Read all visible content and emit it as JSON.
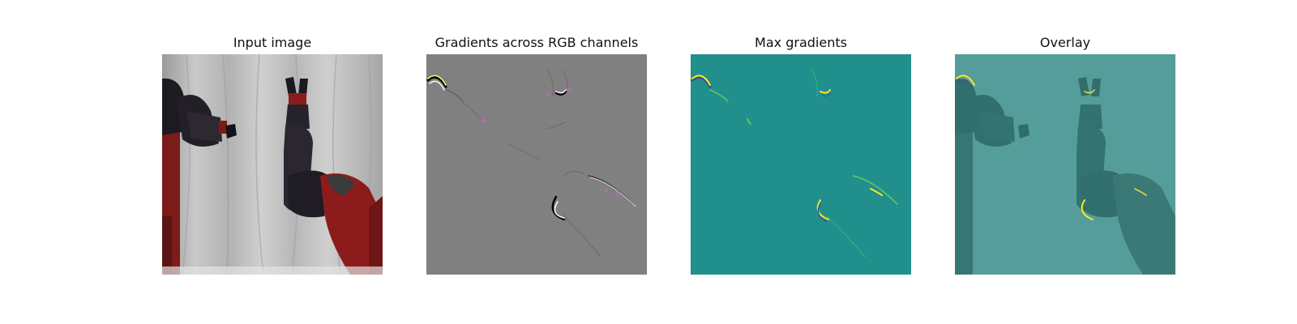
{
  "figure": {
    "panels": [
      {
        "id": "input",
        "title": "Input image"
      },
      {
        "id": "gradients",
        "title": "Gradients across RGB channels"
      },
      {
        "id": "max",
        "title": "Max gradients"
      },
      {
        "id": "overlay",
        "title": "Overlay"
      }
    ]
  },
  "colors": {
    "gradient_bg": "#808080",
    "max_bg": "#21908d",
    "overlay_tint": "#21908d",
    "robot_red": "#8c1c1c",
    "robot_dark": "#1c1a20",
    "backdrop": "#bfbfbf",
    "highlight_yellow": "#fde725"
  }
}
